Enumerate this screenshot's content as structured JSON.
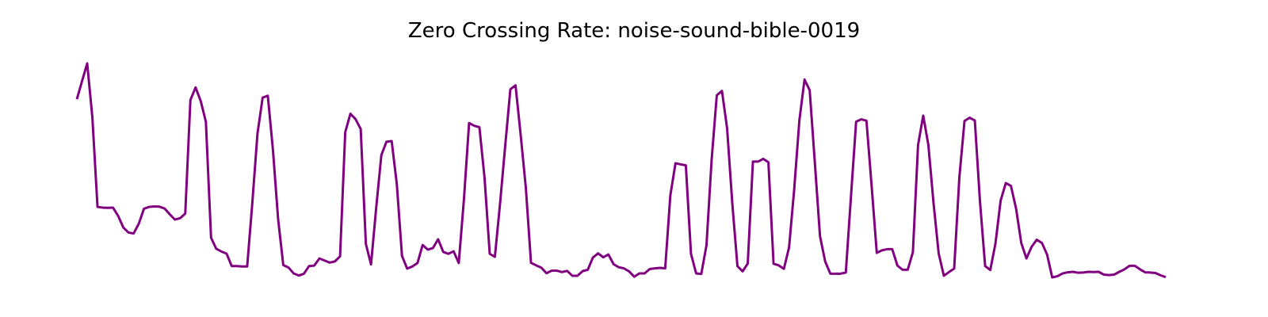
{
  "chart_data": {
    "type": "line",
    "title": "Zero Crossing Rate: noise-sound-bible-0019",
    "xlabel": "",
    "ylabel": "",
    "axes_visible": false,
    "grid": false,
    "series": [
      {
        "color": "#800080",
        "values": [
          0.2065,
          0.2143,
          0.222,
          0.1987,
          0.1599,
          0.1596,
          0.1595,
          0.1596,
          0.156,
          0.151,
          0.1488,
          0.1484,
          0.1526,
          0.1591,
          0.1599,
          0.1601,
          0.16,
          0.1592,
          0.1567,
          0.1544,
          0.155,
          0.157,
          0.2061,
          0.2116,
          0.2057,
          0.1967,
          0.1466,
          0.1418,
          0.1406,
          0.1397,
          0.1343,
          0.1343,
          0.1341,
          0.1341,
          0.1617,
          0.1917,
          0.2072,
          0.208,
          0.1844,
          0.1545,
          0.1347,
          0.1337,
          0.1311,
          0.1302,
          0.131,
          0.1343,
          0.1345,
          0.1376,
          0.1367,
          0.1358,
          0.1363,
          0.1385,
          0.1922,
          0.2002,
          0.1979,
          0.1936,
          0.1439,
          0.135,
          0.1595,
          0.1823,
          0.1881,
          0.1884,
          0.1697,
          0.1387,
          0.1332,
          0.1341,
          0.1356,
          0.1434,
          0.1414,
          0.1421,
          0.1459,
          0.1404,
          0.1396,
          0.1407,
          0.1356,
          0.1631,
          0.1962,
          0.195,
          0.1944,
          0.1724,
          0.1396,
          0.1383,
          0.1613,
          0.1863,
          0.2108,
          0.2125,
          0.191,
          0.1681,
          0.1357,
          0.1346,
          0.1336,
          0.1312,
          0.1323,
          0.1323,
          0.1317,
          0.1322,
          0.1301,
          0.1301,
          0.1321,
          0.1327,
          0.138,
          0.1398,
          0.1381,
          0.1393,
          0.1351,
          0.1338,
          0.1333,
          0.132,
          0.1297,
          0.1311,
          0.1311,
          0.133,
          0.1333,
          0.1335,
          0.1333,
          0.1649,
          0.1788,
          0.1783,
          0.1779,
          0.1396,
          0.1311,
          0.1309,
          0.1433,
          0.1803,
          0.2082,
          0.2101,
          0.1939,
          0.1616,
          0.1343,
          0.132,
          0.1354,
          0.1795,
          0.1795,
          0.1807,
          0.1792,
          0.1353,
          0.1346,
          0.1331,
          0.1423,
          0.1675,
          0.1973,
          0.215,
          0.2104,
          0.1791,
          0.1472,
          0.1363,
          0.131,
          0.131,
          0.131,
          0.1315,
          0.1644,
          0.1968,
          0.1978,
          0.1972,
          0.1691,
          0.14,
          0.1411,
          0.1416,
          0.1416,
          0.1345,
          0.1327,
          0.1327,
          0.1403,
          0.1867,
          0.1994,
          0.1867,
          0.1615,
          0.1397,
          0.1301,
          0.1317,
          0.1332,
          0.1726,
          0.1971,
          0.1985,
          0.1973,
          0.1622,
          0.1343,
          0.1326,
          0.1441,
          0.1626,
          0.1702,
          0.169,
          0.1591,
          0.1443,
          0.1376,
          0.1426,
          0.1457,
          0.1443,
          0.1393,
          0.1294,
          0.1299,
          0.1311,
          0.1316,
          0.1318,
          0.1314,
          0.1315,
          0.1318,
          0.1317,
          0.1318,
          0.1306,
          0.1304,
          0.1306,
          0.1318,
          0.1329,
          0.1344,
          0.1344,
          0.1329,
          0.1316,
          0.1315,
          0.1313,
          0.1303,
          0.1295
        ]
      }
    ]
  }
}
